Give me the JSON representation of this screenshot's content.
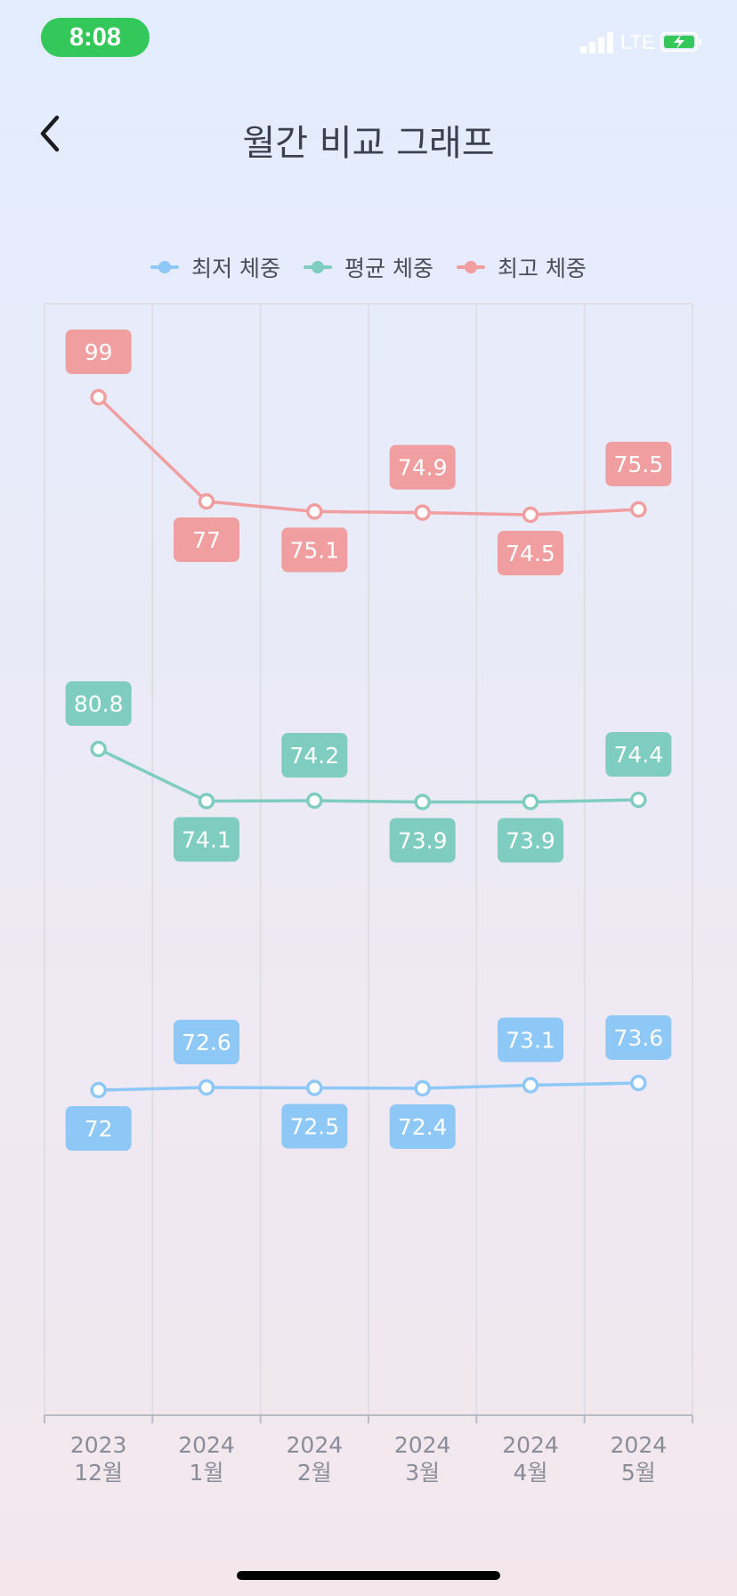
{
  "status_bar": {
    "time": "8:08",
    "network": "LTE"
  },
  "header": {
    "title": "월간 비교 그래프",
    "back_icon": "chevron-left-icon"
  },
  "colors": {
    "min": "#8ec8f7",
    "avg": "#7fcdc0",
    "max": "#f09e9f",
    "status_time": "#34c759"
  },
  "chart_data": {
    "type": "line",
    "title": "",
    "categories": [
      {
        "year": "2023",
        "month": "12월"
      },
      {
        "year": "2024",
        "month": "1월"
      },
      {
        "year": "2024",
        "month": "2월"
      },
      {
        "year": "2024",
        "month": "3월"
      },
      {
        "year": "2024",
        "month": "4월"
      },
      {
        "year": "2024",
        "month": "5월"
      }
    ],
    "series": [
      {
        "key": "min",
        "name": "최저 체중",
        "values": [
          72,
          72.6,
          72.5,
          72.4,
          73.1,
          73.6
        ],
        "labels": [
          "72",
          "72.6",
          "72.5",
          "72.4",
          "73.1",
          "73.6"
        ],
        "label_pos": [
          "below",
          "above",
          "below",
          "below",
          "above",
          "above"
        ]
      },
      {
        "key": "avg",
        "name": "평균 체중",
        "values": [
          80.8,
          74.1,
          74.2,
          73.9,
          73.9,
          74.4
        ],
        "labels": [
          "80.8",
          "74.1",
          "74.2",
          "73.9",
          "73.9",
          "74.4"
        ],
        "label_pos": [
          "above",
          "below",
          "above",
          "below",
          "below",
          "above"
        ]
      },
      {
        "key": "max",
        "name": "최고 체중",
        "values": [
          99,
          77,
          75.1,
          74.9,
          74.5,
          75.5
        ],
        "labels": [
          "99",
          "77",
          "75.1",
          "74.9",
          "74.5",
          "75.5"
        ],
        "label_pos": [
          "above",
          "below",
          "below",
          "above",
          "below",
          "above"
        ]
      }
    ],
    "grid": true,
    "legend_position": "top-center"
  }
}
